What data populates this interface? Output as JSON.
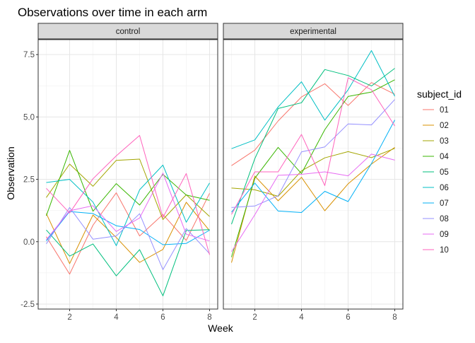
{
  "chart_data": {
    "type": "line",
    "title": "Observations over time in each arm",
    "xlabel": "Week",
    "ylabel": "Observation",
    "xlim": [
      0.65,
      8.35
    ],
    "ylim": [
      -2.7,
      8.1
    ],
    "x_ticks": [
      2,
      4,
      6,
      8
    ],
    "y_ticks": [
      -2.5,
      0,
      2.5,
      5,
      7.5
    ],
    "y_tick_labels": [
      "-2.5",
      "0.0",
      "2.5",
      "5.0",
      "7.5"
    ],
    "x": [
      1,
      2,
      3,
      4,
      5,
      6,
      7,
      8
    ],
    "grid": true,
    "legend": {
      "title": "subject_id",
      "position": "right"
    },
    "series_colors": {
      "01": "#F8766D",
      "02": "#D89000",
      "03": "#A3A500",
      "04": "#39B600",
      "05": "#00BF7D",
      "06": "#00BFC4",
      "07": "#00B0F6",
      "08": "#9590FF",
      "09": "#E76BF3",
      "10": "#FF62BC"
    },
    "panels": [
      {
        "label": "control",
        "series": [
          {
            "name": "01",
            "values": [
              0.2,
              -1.3,
              0.66,
              1.96,
              0.23,
              1.09,
              0.05,
              1.94
            ]
          },
          {
            "name": "02",
            "values": [
              1.13,
              -0.88,
              1.07,
              0.17,
              -0.83,
              -0.31,
              1.58,
              0.44
            ]
          },
          {
            "name": "03",
            "values": [
              1.77,
              3.11,
              2.22,
              3.26,
              3.31,
              0.89,
              1.88,
              1.01
            ]
          },
          {
            "name": "04",
            "values": [
              1.04,
              3.66,
              1.22,
              2.33,
              1.47,
              2.7,
              1.87,
              1.66
            ]
          },
          {
            "name": "05",
            "values": [
              0.47,
              -0.58,
              -0.09,
              -1.37,
              -0.32,
              -2.17,
              0.45,
              0.48
            ]
          },
          {
            "name": "06",
            "values": [
              2.37,
              2.5,
              1.59,
              -0.16,
              2.08,
              3.07,
              0.78,
              2.35
            ]
          },
          {
            "name": "07",
            "values": [
              0.03,
              1.21,
              1.13,
              0.64,
              0.49,
              -0.12,
              -0.07,
              0.46
            ]
          },
          {
            "name": "08",
            "values": [
              -0.09,
              1.37,
              0.1,
              0.23,
              1.12,
              -1.12,
              0.53,
              -0.48
            ]
          },
          {
            "name": "09",
            "values": [
              0.08,
              1.24,
              1.44,
              0.41,
              0.95,
              2.75,
              0.3,
              0.03
            ]
          },
          {
            "name": "10",
            "values": [
              2.14,
              1.15,
              2.52,
              3.44,
              4.26,
              0.97,
              2.73,
              -0.53
            ]
          }
        ]
      },
      {
        "label": "experimental",
        "series": [
          {
            "name": "01",
            "values": [
              3.05,
              3.67,
              4.84,
              5.8,
              6.33,
              5.46,
              6.38,
              5.91
            ]
          },
          {
            "name": "02",
            "values": [
              -0.84,
              2.63,
              1.64,
              2.58,
              1.24,
              2.32,
              3.11,
              3.78
            ]
          },
          {
            "name": "03",
            "values": [
              2.15,
              2.08,
              1.82,
              2.84,
              3.36,
              3.61,
              3.37,
              3.74
            ]
          },
          {
            "name": "04",
            "values": [
              -0.62,
              2.54,
              3.78,
              2.73,
              4.49,
              5.82,
              6.0,
              6.49
            ]
          },
          {
            "name": "05",
            "values": [
              0.7,
              3.33,
              5.34,
              5.57,
              6.9,
              6.66,
              6.24,
              6.95
            ]
          },
          {
            "name": "06",
            "values": [
              3.73,
              4.08,
              5.4,
              6.41,
              4.87,
              6.09,
              7.66,
              5.83
            ]
          },
          {
            "name": "07",
            "values": [
              1.18,
              2.35,
              1.23,
              1.17,
              2.02,
              1.61,
              3.13,
              4.88
            ]
          },
          {
            "name": "08",
            "values": [
              1.37,
              1.43,
              1.84,
              3.6,
              3.8,
              4.72,
              4.68,
              5.7
            ]
          },
          {
            "name": "09",
            "values": [
              -0.4,
              1.08,
              2.66,
              2.7,
              2.8,
              2.64,
              3.51,
              3.27
            ]
          },
          {
            "name": "10",
            "values": [
              1.09,
              2.8,
              2.8,
              4.3,
              2.25,
              6.57,
              6.09,
              4.64
            ]
          }
        ]
      }
    ]
  }
}
